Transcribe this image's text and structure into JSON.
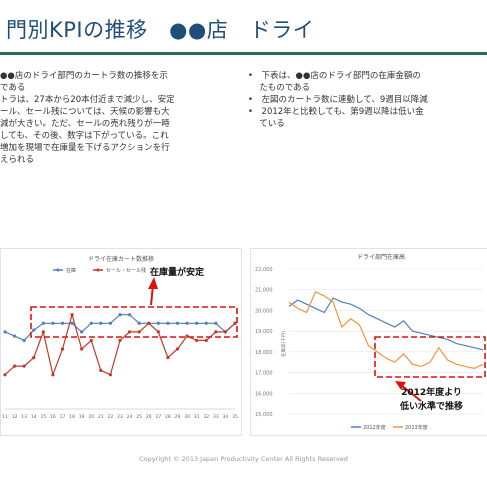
{
  "slide": {
    "title": "門別KPIの推移　●●店　ドライ",
    "left_lines": [
      "●●店のドライ部門のカートラ数の推移を示",
      "である",
      "トラは、27本から20本付近まで減少し、安定",
      "",
      "ール、セール残については、天候の影響も大",
      "減が大きい。ただ、セールの売れ残りが一時",
      "しても、その後、数字は下がっている。これ",
      "増加を現場で在庫量を下げるアクションを行",
      "えられる"
    ],
    "right_lines": [
      "下表は、●●店のドライ部門の在庫金額の",
      "たものである",
      "左図のカートラ数に連動して、9週目以降減",
      "2012年と比較しても、第9週以降は低い金",
      "ている"
    ],
    "right_bullet_marks": [
      "•",
      "",
      "•",
      "•",
      ""
    ],
    "callout_stable": "在庫量が安定",
    "callout_low_line1": "2012年度より",
    "callout_low_line2": "低い水準で推移",
    "footer": "Copyright © 2013 Japan Productivity Center All Rights Reserved"
  },
  "colors": {
    "title": "#1f4e79",
    "rule": "#2e6b4f",
    "series_blue": "#4f7fc0",
    "series_red": "#c0392b",
    "series_orange": "#f0963a",
    "callout": "#d9140f"
  },
  "chart_data": [
    {
      "type": "line",
      "title": "ドライ在庫カート数推移",
      "series": [
        {
          "name": "在庫",
          "values": [
            29.0,
            28.5,
            28.0,
            29.2,
            30.0,
            30.0,
            30.0,
            30.0,
            29.0,
            30.0,
            30.0,
            30.0,
            31.0,
            31.0,
            30.0,
            30.0,
            30.0,
            30.0,
            30.0,
            30.0,
            30.0,
            30.0,
            30.0,
            29.0,
            30.0
          ]
        },
        {
          "name": "セール・セール残",
          "values": [
            24.0,
            25.0,
            25.0,
            26.0,
            29.0,
            24.0,
            27.0,
            31.0,
            27.0,
            28.0,
            24.5,
            24.0,
            28.0,
            29.0,
            29.0,
            30.0,
            29.0,
            26.0,
            27.0,
            28.5,
            28.0,
            28.0,
            29.0,
            29.0,
            30.0
          ]
        }
      ],
      "week_labels": [
        "11",
        "12",
        "13",
        "14",
        "15",
        "16",
        "17",
        "18",
        "19",
        "20",
        "21",
        "22",
        "23",
        "24",
        "25",
        "26",
        "27",
        "28",
        "29",
        "30",
        "31",
        "32",
        "33",
        "34",
        "35"
      ],
      "ylim": [
        20,
        34
      ]
    },
    {
      "type": "line",
      "title": "ドライ部門在庫高",
      "ylabel": "在庫高(千円)",
      "yticks": [
        "22,000",
        "21,000",
        "20,000",
        "19,000",
        "18,000",
        "17,000",
        "16,000",
        "15,000"
      ],
      "ylim": [
        15000,
        22000
      ],
      "series": [
        {
          "name": "2012年度",
          "values": [
            20200,
            20500,
            20300,
            20100,
            19900,
            20600,
            20400,
            20300,
            20100,
            19800,
            19600,
            19400,
            19200,
            19500,
            19000,
            18900,
            18800,
            18700,
            18600,
            18400,
            18300,
            18200,
            18100
          ]
        },
        {
          "name": "2013年度",
          "values": [
            20400,
            20100,
            19900,
            20900,
            20700,
            20400,
            19200,
            19600,
            19300,
            18300,
            18000,
            17700,
            17500,
            17900,
            17400,
            17300,
            17500,
            18200,
            17600,
            17400,
            17300,
            17200,
            17400
          ]
        }
      ]
    }
  ]
}
